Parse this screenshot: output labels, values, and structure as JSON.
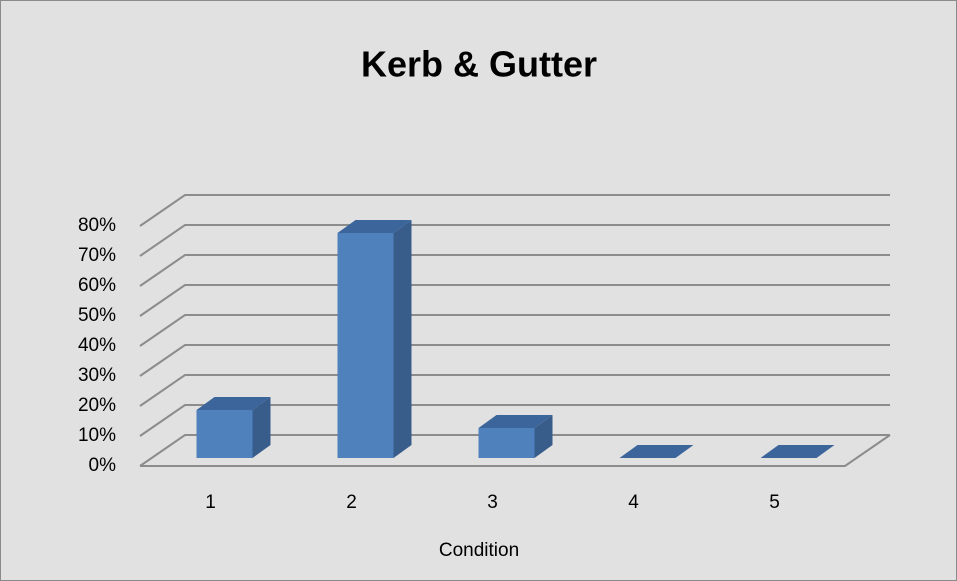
{
  "chart_data": {
    "type": "bar3d",
    "title": "Kerb & Gutter",
    "x_label": "Condition",
    "categories": [
      "1",
      "2",
      "3",
      "4",
      "5"
    ],
    "values": [
      16,
      75,
      10,
      0,
      0
    ],
    "color": "#4f81bd",
    "ylim": [
      0,
      80
    ],
    "yticks": [
      {
        "value": 0,
        "label": "0%"
      },
      {
        "value": 10,
        "label": "10%"
      },
      {
        "value": 20,
        "label": "20%"
      },
      {
        "value": 30,
        "label": "30%"
      },
      {
        "value": 40,
        "label": "40%"
      },
      {
        "value": 50,
        "label": "50%"
      },
      {
        "value": 60,
        "label": "60%"
      },
      {
        "value": 70,
        "label": "70%"
      },
      {
        "value": 80,
        "label": "80%"
      }
    ],
    "grid": true
  }
}
